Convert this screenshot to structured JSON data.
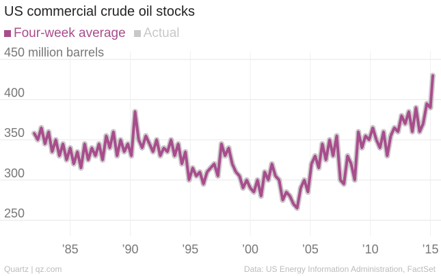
{
  "header": {
    "title": "US commercial crude oil stocks"
  },
  "legend": [
    {
      "label": "Four-week average",
      "color": "#a84d8c"
    },
    {
      "label": "Actual",
      "color": "#c8c8c8"
    }
  ],
  "footer": {
    "source_left": "Quartz | qz.com",
    "source_right": "Data: US Energy Information Administration, FactSet"
  },
  "chart_data": {
    "type": "line",
    "title": "US commercial crude oil stocks",
    "y_unit_label": "450 million barrels",
    "ylim": [
      230,
      460
    ],
    "xlim": [
      1982,
      2015.6
    ],
    "y_ticks": [
      {
        "value": 450,
        "label": "450 million barrels"
      },
      {
        "value": 400,
        "label": "400"
      },
      {
        "value": 350,
        "label": "350"
      },
      {
        "value": 300,
        "label": "300"
      },
      {
        "value": 250,
        "label": "250"
      }
    ],
    "x_ticks": [
      {
        "value": 1985,
        "label": "’85"
      },
      {
        "value": 1990,
        "label": "’90"
      },
      {
        "value": 1995,
        "label": "’95"
      },
      {
        "value": 2000,
        "label": "’00"
      },
      {
        "value": 2005,
        "label": "’05"
      },
      {
        "value": 2010,
        "label": "’10"
      },
      {
        "value": 2015,
        "label": "’15"
      }
    ],
    "grid": true,
    "legend_position": "top-left",
    "series": [
      {
        "name": "Four-week average",
        "color": "#a84d8c",
        "x": [
          1982.0,
          1982.3,
          1982.6,
          1982.9,
          1983.2,
          1983.5,
          1983.8,
          1984.1,
          1984.4,
          1984.7,
          1985.0,
          1985.3,
          1985.6,
          1985.9,
          1986.2,
          1986.5,
          1986.8,
          1987.1,
          1987.4,
          1987.7,
          1988.0,
          1988.3,
          1988.6,
          1988.9,
          1989.2,
          1989.5,
          1989.8,
          1990.1,
          1990.4,
          1990.7,
          1991.0,
          1991.3,
          1991.6,
          1991.9,
          1992.2,
          1992.5,
          1992.8,
          1993.1,
          1993.4,
          1993.7,
          1994.0,
          1994.3,
          1994.6,
          1994.9,
          1995.2,
          1995.5,
          1995.8,
          1996.1,
          1996.4,
          1996.7,
          1997.0,
          1997.3,
          1997.6,
          1997.9,
          1998.2,
          1998.5,
          1998.8,
          1999.1,
          1999.4,
          1999.7,
          2000.0,
          2000.3,
          2000.6,
          2000.9,
          2001.2,
          2001.5,
          2001.8,
          2002.1,
          2002.4,
          2002.7,
          2003.0,
          2003.3,
          2003.6,
          2003.9,
          2004.2,
          2004.5,
          2004.8,
          2005.1,
          2005.4,
          2005.7,
          2006.0,
          2006.3,
          2006.6,
          2006.9,
          2007.2,
          2007.5,
          2007.8,
          2008.1,
          2008.4,
          2008.7,
          2009.0,
          2009.3,
          2009.6,
          2009.9,
          2010.2,
          2010.5,
          2010.8,
          2011.1,
          2011.4,
          2011.7,
          2012.0,
          2012.3,
          2012.6,
          2012.9,
          2013.2,
          2013.5,
          2013.8,
          2014.1,
          2014.4,
          2014.7,
          2015.0,
          2015.2
        ],
        "values": [
          358,
          350,
          365,
          345,
          360,
          335,
          350,
          330,
          345,
          325,
          340,
          320,
          335,
          315,
          345,
          325,
          340,
          330,
          345,
          325,
          355,
          340,
          360,
          330,
          350,
          335,
          345,
          330,
          385,
          350,
          340,
          355,
          345,
          335,
          350,
          330,
          340,
          335,
          350,
          330,
          345,
          320,
          335,
          300,
          315,
          305,
          310,
          295,
          310,
          315,
          320,
          305,
          345,
          330,
          340,
          320,
          310,
          305,
          290,
          300,
          290,
          285,
          300,
          280,
          310,
          300,
          320,
          305,
          300,
          275,
          285,
          280,
          270,
          265,
          290,
          300,
          285,
          320,
          330,
          315,
          345,
          325,
          350,
          330,
          355,
          300,
          295,
          330,
          320,
          300,
          360,
          340,
          355,
          350,
          365,
          350,
          340,
          360,
          330,
          355,
          365,
          360,
          380,
          370,
          385,
          360,
          390,
          360,
          370,
          395,
          390,
          430
        ]
      }
    ]
  }
}
